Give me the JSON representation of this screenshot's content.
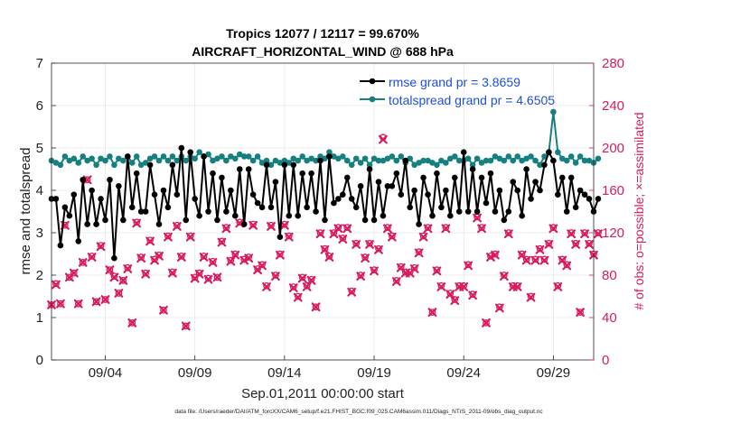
{
  "chart_data": {
    "type": "line",
    "title": "Tropics 12077 / 12117 = 99.670%",
    "subtitle": "AIRCRAFT_HORIZONTAL_WIND @ 688 hPa",
    "xlabel": "Sep.01,2011 00:00:00 start",
    "ylabel_left": "rmse and totalspread",
    "ylabel_right": "# of obs: o=possible; ×=assimilated",
    "ylim_left": [
      0,
      7
    ],
    "ylim_right": [
      0,
      280
    ],
    "xlim_days": [
      1.0,
      31.25
    ],
    "yticks_left": [
      "0",
      "1",
      "2",
      "3",
      "4",
      "5",
      "6",
      "7"
    ],
    "yticks_right": [
      "0",
      "40",
      "80",
      "120",
      "160",
      "200",
      "240",
      "280"
    ],
    "xtick_days": [
      4,
      9,
      14,
      19,
      24,
      29
    ],
    "xtick_labels": [
      "09/04",
      "09/09",
      "09/14",
      "09/19",
      "09/24",
      "09/29"
    ],
    "footer": "data file: /Users/raeder/DAI/ATM_forcXX/CAM6_setup/f.e21.FHIST_BGC.f09_025.CAM6assim.011/Diags_NTrS_2011-09/obs_diag_output.nc",
    "colors": {
      "rmse": "#000000",
      "spread": "#168080",
      "obs": "#d81b60",
      "legend_text": "#1f4fd6",
      "grid": "#e6e6e6"
    },
    "series": [
      {
        "name": "rmse grand pr = 3.8659",
        "values": [
          3.8,
          3.8,
          2.7,
          3.6,
          3.4,
          3.9,
          2.8,
          4.25,
          3.2,
          4.0,
          3.2,
          3.8,
          3.3,
          4.25,
          2.4,
          4.1,
          3.3,
          4.8,
          3.6,
          4.4,
          3.5,
          3.5,
          4.6,
          3.9,
          3.2,
          4.0,
          3.6,
          4.6,
          3.9,
          5.0,
          3.3,
          4.9,
          3.8,
          3.4,
          4.8,
          3.5,
          4.4,
          3.3,
          4.3,
          3.5,
          4.0,
          3.4,
          4.5,
          3.2,
          4.5,
          3.9,
          3.7,
          3.6,
          4.6,
          3.6,
          4.2,
          2.9,
          4.6,
          3.4,
          4.6,
          3.4,
          4.4,
          3.6,
          4.4,
          3.5,
          4.7,
          3.3,
          4.8,
          3.7,
          3.8,
          3.9,
          4.3,
          3.8,
          3.6,
          4.1,
          3.3,
          4.5,
          3.3,
          4.2,
          3.4,
          4.1,
          4.1,
          4.4,
          3.9,
          4.7,
          3.6,
          4.0,
          3.2,
          4.3,
          3.9,
          3.4,
          4.4,
          3.6,
          4.0,
          3.4,
          4.3,
          3.5,
          4.9,
          3.5,
          4.5,
          3.5,
          4.3,
          3.7,
          4.4,
          3.5,
          4.0,
          3.3,
          3.5,
          4.2,
          4.0,
          3.4,
          4.5,
          3.8,
          4.2,
          4.0,
          4.6,
          4.9,
          4.7,
          3.9,
          4.3,
          3.5,
          4.3,
          3.6,
          4.0,
          3.9,
          3.8,
          3.5,
          3.8
        ]
      },
      {
        "name": "totalspread grand pr = 4.6505",
        "values": [
          4.7,
          4.65,
          4.6,
          4.8,
          4.7,
          4.75,
          4.65,
          4.8,
          4.7,
          4.75,
          4.6,
          4.75,
          4.7,
          4.8,
          4.6,
          4.75,
          4.7,
          4.8,
          4.65,
          4.8,
          4.6,
          4.65,
          4.75,
          4.8,
          4.7,
          4.8,
          4.7,
          4.8,
          4.7,
          4.8,
          4.7,
          4.8,
          4.75,
          4.9,
          4.8,
          4.85,
          4.7,
          4.75,
          4.8,
          4.7,
          4.8,
          4.75,
          4.85,
          4.8,
          4.8,
          4.7,
          4.8,
          4.65,
          4.7,
          4.6,
          4.7,
          4.65,
          4.7,
          4.65,
          4.75,
          4.7,
          4.8,
          4.7,
          4.75,
          4.7,
          4.8,
          4.75,
          4.9,
          4.8,
          4.75,
          4.8,
          4.7,
          4.6,
          4.75,
          4.65,
          4.75,
          4.6,
          4.75,
          4.7,
          4.7,
          4.75,
          4.8,
          4.7,
          4.8,
          4.65,
          4.75,
          4.6,
          4.65,
          4.7,
          4.7,
          4.65,
          4.6,
          4.7,
          4.65,
          4.75,
          4.8,
          4.7,
          4.7,
          4.75,
          4.6,
          4.75,
          4.65,
          4.7,
          4.7,
          4.8,
          4.75,
          4.7,
          4.8,
          4.7,
          4.8,
          4.7,
          4.75,
          4.8,
          4.7,
          4.6,
          4.8,
          4.9,
          5.85,
          4.9,
          4.75,
          4.7,
          4.8,
          4.65,
          4.8,
          4.7,
          4.7,
          4.65,
          4.75
        ]
      },
      {
        "name": "obs possible",
        "values": [
          52,
          72,
          53,
          127,
          78,
          82,
          53,
          92,
          170,
          98,
          55,
          108,
          57,
          85,
          79,
          63,
          75,
          87,
          35,
          130,
          97,
          82,
          113,
          95,
          99,
          47,
          117,
          83,
          127,
          98,
          32,
          117,
          78,
          82,
          98,
          77,
          93,
          78,
          112,
          125,
          94,
          100,
          130,
          95,
          97,
          128,
          86,
          90,
          70,
          127,
          80,
          100,
          128,
          117,
          69,
          60,
          78,
          70,
          76,
          50,
          120,
          105,
          98,
          120,
          125,
          115,
          125,
          65,
          110,
          80,
          97,
          110,
          85,
          105,
          210,
          125,
          117,
          75,
          88,
          83,
          83,
          87,
          102,
          117,
          125,
          45,
          85,
          70,
          125,
          63,
          57,
          70,
          70,
          90,
          62,
          135,
          125,
          35,
          98,
          100,
          50,
          80,
          120,
          70,
          70,
          100,
          95,
          60,
          95,
          105,
          95,
          110,
          125,
          70,
          95,
          90,
          120,
          110,
          45,
          120,
          110,
          100,
          120
        ]
      },
      {
        "name": "obs assimilated",
        "values": [
          52,
          71,
          53,
          127,
          78,
          82,
          53,
          92,
          170,
          97,
          55,
          107,
          57,
          85,
          78,
          63,
          75,
          86,
          35,
          129,
          96,
          81,
          112,
          94,
          98,
          47,
          116,
          82,
          126,
          97,
          32,
          116,
          77,
          81,
          97,
          76,
          92,
          78,
          111,
          124,
          93,
          99,
          129,
          94,
          96,
          127,
          85,
          89,
          69,
          126,
          79,
          99,
          127,
          116,
          68,
          59,
          77,
          69,
          75,
          50,
          119,
          104,
          97,
          119,
          124,
          114,
          124,
          64,
          109,
          79,
          96,
          109,
          84,
          104,
          208,
          124,
          116,
          74,
          87,
          82,
          82,
          86,
          101,
          116,
          124,
          45,
          84,
          69,
          124,
          62,
          56,
          69,
          69,
          89,
          61,
          134,
          124,
          35,
          97,
          99,
          49,
          79,
          119,
          69,
          69,
          99,
          94,
          59,
          94,
          104,
          94,
          109,
          124,
          69,
          94,
          89,
          119,
          109,
          45,
          119,
          109,
          99,
          119
        ]
      }
    ]
  }
}
